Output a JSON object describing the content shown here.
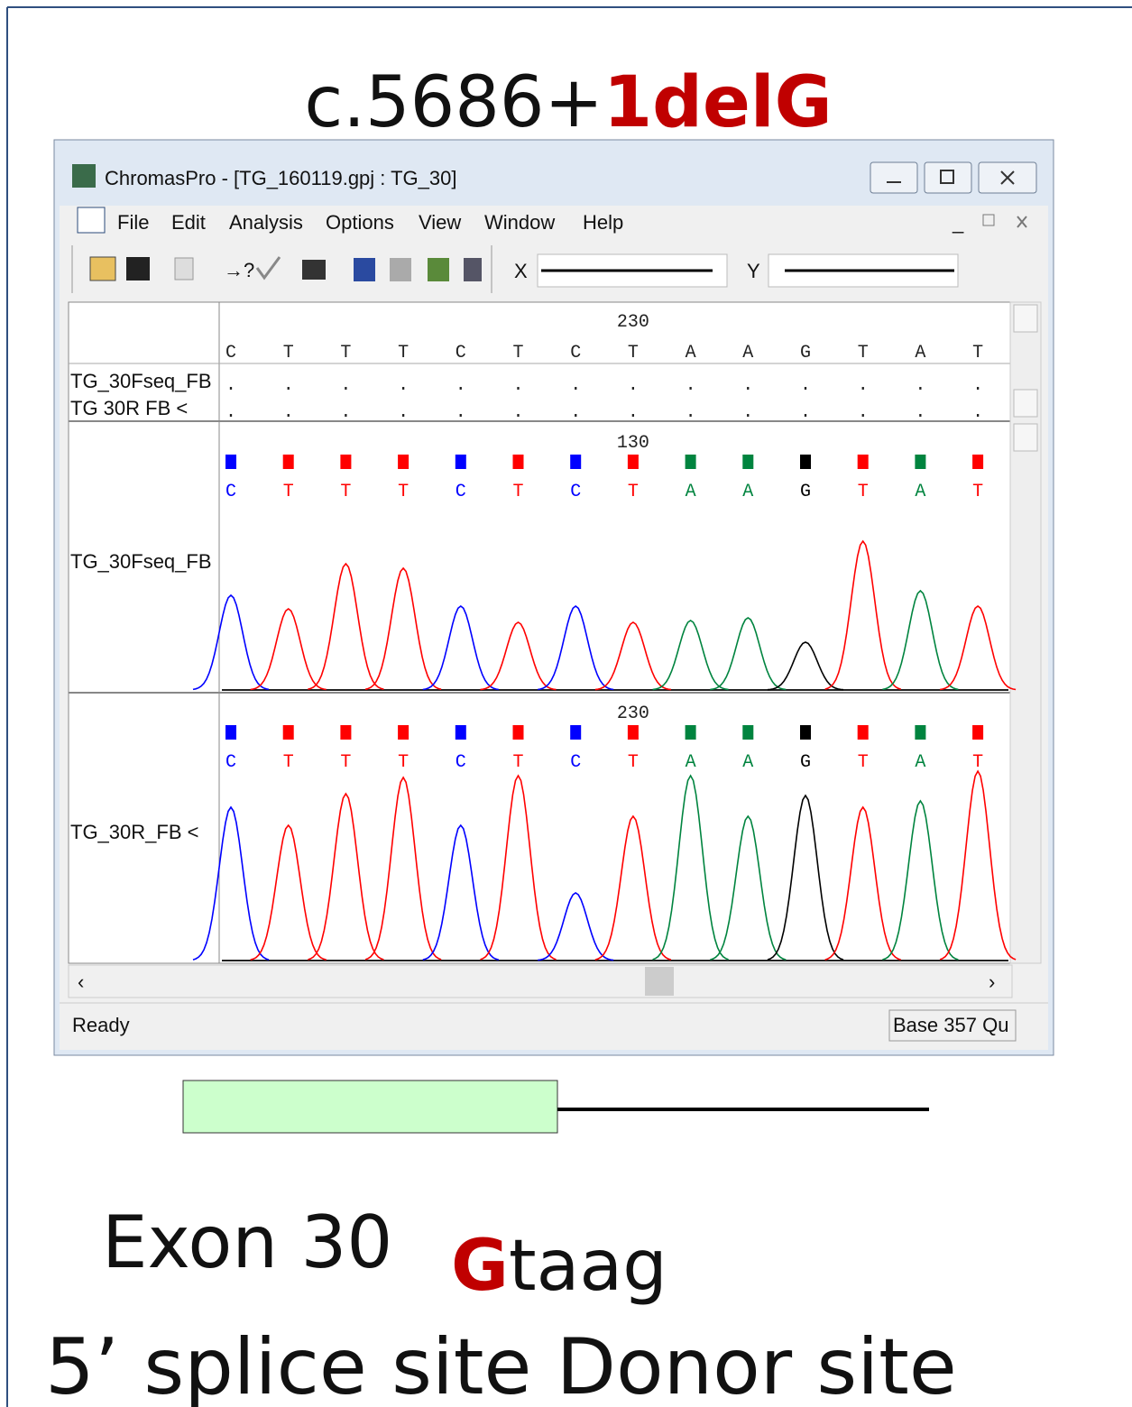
{
  "slide": {
    "title_prefix": "c.5686+",
    "title_highlight": "1delG",
    "exon_label": "Exon 30",
    "seq_highlight": "G",
    "seq_rest": "taag",
    "caption": "5’ splice site  Donor site"
  },
  "window": {
    "title": "ChromasPro - [TG_160119.gpj : TG_30]",
    "menu": [
      "File",
      "Edit",
      "Analysis",
      "Options",
      "View",
      "Window",
      "Help"
    ],
    "x_label": "X",
    "y_label": "Y",
    "consensus": {
      "position_label": "230",
      "bases": [
        "C",
        "T",
        "T",
        "T",
        "C",
        "T",
        "C",
        "T",
        "A",
        "A",
        "G",
        "T",
        "A",
        "T"
      ]
    },
    "alignment_rows": [
      {
        "name": "TG_30Fseq_FB",
        "match_symbol": "."
      },
      {
        "name": "TG 30R FB <",
        "match_symbol": "."
      }
    ],
    "traces": [
      {
        "name": "TG_30Fseq_FB",
        "position_label": "130",
        "bases": [
          "C",
          "T",
          "T",
          "T",
          "C",
          "T",
          "C",
          "T",
          "A",
          "A",
          "G",
          "T",
          "A",
          "T"
        ],
        "peak_heights": [
          105,
          90,
          140,
          135,
          93,
          75,
          93,
          75,
          77,
          80,
          53,
          165,
          110,
          93
        ]
      },
      {
        "name": "TG_30R_FB <",
        "position_label": "230",
        "bases": [
          "C",
          "T",
          "T",
          "T",
          "C",
          "T",
          "C",
          "T",
          "A",
          "A",
          "G",
          "T",
          "A",
          "T"
        ],
        "peak_heights": [
          170,
          150,
          185,
          203,
          150,
          205,
          75,
          160,
          205,
          160,
          183,
          170,
          177,
          210
        ]
      }
    ],
    "base_colors": {
      "A": "#00843f",
      "C": "#0000ff",
      "G": "#000000",
      "T": "#ff0000"
    },
    "status": "Ready",
    "status_right": "Base 357 Qu"
  }
}
